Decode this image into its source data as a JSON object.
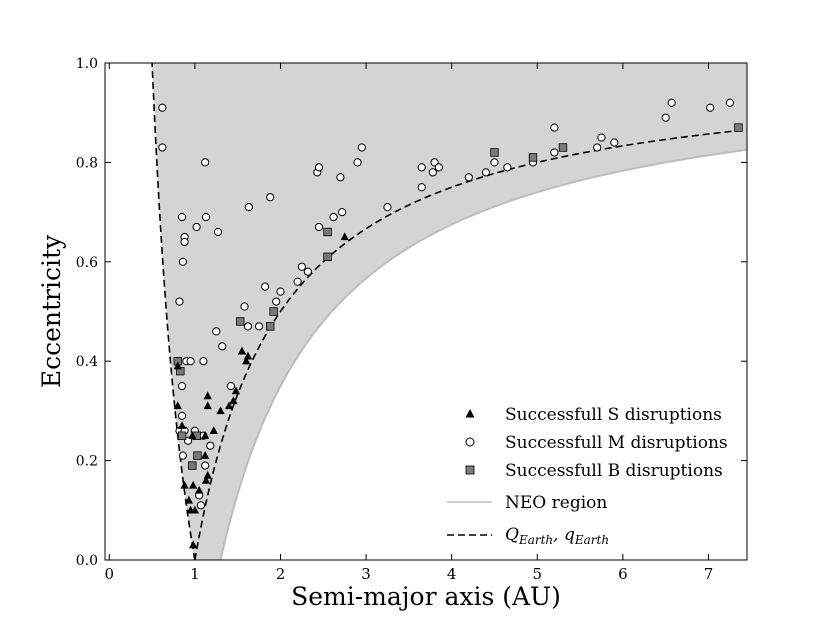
{
  "chart_data": {
    "type": "scatter",
    "title": "",
    "xlabel": "Semi-major axis (AU)",
    "ylabel": "Eccentricity",
    "xlim": [
      -0.05,
      7.45
    ],
    "ylim": [
      0.0,
      1.0
    ],
    "x_ticks": [
      0,
      1,
      2,
      3,
      4,
      5,
      6,
      7
    ],
    "y_ticks": [
      0.0,
      0.2,
      0.4,
      0.6,
      0.8,
      1.0
    ],
    "x_tick_labels": [
      "0",
      "1",
      "2",
      "3",
      "4",
      "5",
      "6",
      "7"
    ],
    "y_tick_labels": [
      "0.0",
      "0.2",
      "0.4",
      "0.6",
      "0.8",
      "1.0"
    ],
    "grid": false,
    "legend_position": "bottom-right",
    "colors": {
      "neo_fill": "#d4d4d4",
      "neo_edge": "#bdbdbd",
      "s_marker": "#000000",
      "m_marker_fill": "#ffffff",
      "b_marker": "#7a7a7a"
    },
    "curves": [
      {
        "name": "NEO region",
        "legend_label": "NEO region",
        "description": "shaded region above a = 1.3/(1-e)"
      },
      {
        "name": "Q_Earth, q_Earth",
        "legend_label_parts": [
          "Q",
          "Earth",
          ", q",
          "Earth"
        ],
        "description": "dashed curves a = 1/(1+e) and a = 1/(1-e)"
      }
    ],
    "series": [
      {
        "name": "Successfull S disruptions",
        "marker": "triangle",
        "points": [
          [
            0.98,
            0.03
          ],
          [
            0.95,
            0.1
          ],
          [
            1.0,
            0.1
          ],
          [
            0.93,
            0.12
          ],
          [
            0.88,
            0.15
          ],
          [
            0.98,
            0.15
          ],
          [
            1.05,
            0.14
          ],
          [
            1.13,
            0.16
          ],
          [
            1.15,
            0.17
          ],
          [
            1.12,
            0.21
          ],
          [
            0.97,
            0.25
          ],
          [
            0.85,
            0.27
          ],
          [
            1.12,
            0.25
          ],
          [
            1.22,
            0.26
          ],
          [
            1.3,
            0.3
          ],
          [
            1.4,
            0.31
          ],
          [
            1.45,
            0.32
          ],
          [
            1.48,
            0.34
          ],
          [
            1.15,
            0.33
          ],
          [
            1.15,
            0.31
          ],
          [
            0.8,
            0.31
          ],
          [
            0.8,
            0.39
          ],
          [
            1.55,
            0.42
          ],
          [
            1.6,
            0.4
          ],
          [
            1.62,
            0.41
          ],
          [
            2.75,
            0.65
          ]
        ]
      },
      {
        "name": "Successfull M disruptions",
        "marker": "circle",
        "points": [
          [
            0.62,
            0.91
          ],
          [
            0.62,
            0.83
          ],
          [
            0.82,
            0.52
          ],
          [
            0.85,
            0.69
          ],
          [
            0.88,
            0.65
          ],
          [
            0.88,
            0.64
          ],
          [
            0.86,
            0.6
          ],
          [
            1.02,
            0.67
          ],
          [
            1.13,
            0.69
          ],
          [
            1.12,
            0.8
          ],
          [
            1.27,
            0.66
          ],
          [
            1.63,
            0.71
          ],
          [
            1.88,
            0.73
          ],
          [
            1.62,
            0.47
          ],
          [
            1.58,
            0.51
          ],
          [
            1.32,
            0.43
          ],
          [
            1.25,
            0.46
          ],
          [
            0.9,
            0.4
          ],
          [
            0.95,
            0.4
          ],
          [
            1.1,
            0.4
          ],
          [
            0.82,
            0.26
          ],
          [
            0.85,
            0.29
          ],
          [
            0.85,
            0.35
          ],
          [
            0.88,
            0.26
          ],
          [
            0.86,
            0.21
          ],
          [
            0.92,
            0.24
          ],
          [
            1.0,
            0.26
          ],
          [
            1.05,
            0.25
          ],
          [
            1.1,
            0.25
          ],
          [
            1.12,
            0.19
          ],
          [
            1.05,
            0.13
          ],
          [
            1.07,
            0.11
          ],
          [
            1.18,
            0.23
          ],
          [
            1.42,
            0.35
          ],
          [
            1.75,
            0.47
          ],
          [
            1.82,
            0.55
          ],
          [
            1.95,
            0.52
          ],
          [
            2.0,
            0.54
          ],
          [
            2.2,
            0.56
          ],
          [
            2.25,
            0.59
          ],
          [
            2.32,
            0.58
          ],
          [
            2.45,
            0.67
          ],
          [
            2.62,
            0.69
          ],
          [
            2.72,
            0.7
          ],
          [
            2.43,
            0.78
          ],
          [
            2.45,
            0.79
          ],
          [
            2.7,
            0.77
          ],
          [
            2.9,
            0.8
          ],
          [
            2.95,
            0.83
          ],
          [
            3.25,
            0.71
          ],
          [
            3.65,
            0.75
          ],
          [
            3.65,
            0.79
          ],
          [
            3.78,
            0.78
          ],
          [
            3.8,
            0.8
          ],
          [
            3.85,
            0.79
          ],
          [
            4.2,
            0.77
          ],
          [
            4.4,
            0.78
          ],
          [
            4.5,
            0.8
          ],
          [
            4.65,
            0.79
          ],
          [
            4.95,
            0.8
          ],
          [
            5.2,
            0.82
          ],
          [
            5.2,
            0.87
          ],
          [
            5.7,
            0.83
          ],
          [
            5.75,
            0.85
          ],
          [
            5.9,
            0.84
          ],
          [
            6.5,
            0.89
          ],
          [
            6.57,
            0.92
          ],
          [
            7.02,
            0.91
          ],
          [
            7.25,
            0.92
          ]
        ]
      },
      {
        "name": "Successfull B disruptions",
        "marker": "square",
        "points": [
          [
            0.97,
            0.19
          ],
          [
            1.03,
            0.21
          ],
          [
            1.02,
            0.25
          ],
          [
            0.85,
            0.25
          ],
          [
            0.8,
            0.4
          ],
          [
            0.83,
            0.38
          ],
          [
            1.53,
            0.48
          ],
          [
            1.88,
            0.47
          ],
          [
            1.92,
            0.5
          ],
          [
            2.55,
            0.61
          ],
          [
            2.55,
            0.66
          ],
          [
            4.5,
            0.82
          ],
          [
            4.95,
            0.81
          ],
          [
            5.3,
            0.83
          ],
          [
            7.35,
            0.87
          ]
        ]
      }
    ]
  }
}
